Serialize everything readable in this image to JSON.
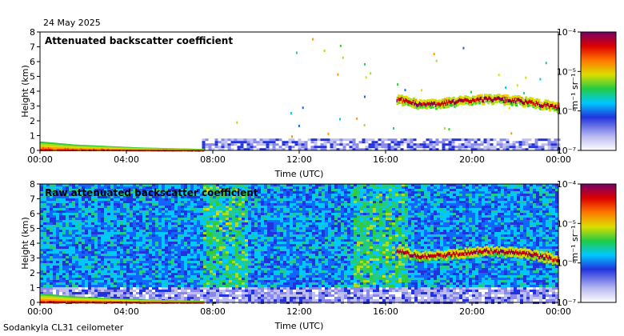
{
  "date_label": "24 May 2025",
  "footer_label": "Sodankyla CL31 ceilometer",
  "chart_data": [
    {
      "type": "heatmap",
      "title": "Attenuated backscatter coefficient",
      "xlabel": "Time (UTC)",
      "ylabel": "Height (km)",
      "x_ticks": [
        "00:00",
        "04:00",
        "08:00",
        "12:00",
        "16:00",
        "20:00",
        "00:00"
      ],
      "y_ticks": [
        "0",
        "1",
        "2",
        "3",
        "4",
        "5",
        "6",
        "7",
        "8"
      ],
      "xlim_hours": [
        0,
        24
      ],
      "ylim_km": [
        0,
        8
      ],
      "colorbar": {
        "unit": "m⁻¹ sr⁻¹",
        "scale": "log",
        "ticks": [
          "10⁻⁷",
          "10⁻⁶",
          "10⁻⁵",
          "10⁻⁴"
        ],
        "range": [
          1e-07,
          0.0001
        ]
      },
      "features": {
        "cloud_layer": {
          "start_hour": 16.5,
          "end_hour": 24,
          "height_km": [
            3.5,
            3.1,
            3.2,
            3.4,
            3.5,
            3.4,
            3.2,
            2.9
          ]
        },
        "boundary_layer": {
          "start_hour": 0,
          "end_hour": 7.5,
          "height_km": [
            0.6,
            0.4,
            0.3,
            0.2,
            0.15,
            0.1
          ]
        },
        "noise_top_km": 0.8
      }
    },
    {
      "type": "heatmap",
      "title": "Raw attenuated backscatter coefficient",
      "xlabel": "Time (UTC)",
      "ylabel": "Height (km)",
      "x_ticks": [
        "00:00",
        "04:00",
        "08:00",
        "12:00",
        "16:00",
        "20:00",
        "00:00"
      ],
      "y_ticks": [
        "0",
        "1",
        "2",
        "3",
        "4",
        "5",
        "6",
        "7",
        "8"
      ],
      "xlim_hours": [
        0,
        24
      ],
      "ylim_km": [
        0,
        8
      ],
      "colorbar": {
        "unit": "m⁻¹ sr⁻¹",
        "scale": "log",
        "ticks": [
          "10⁻⁷",
          "10⁻⁶",
          "10⁻⁵",
          "10⁻⁴"
        ],
        "range": [
          1e-07,
          0.0001
        ]
      },
      "features": {
        "cloud_layer": {
          "start_hour": 16.5,
          "end_hour": 24,
          "height_km": [
            3.5,
            3.1,
            3.2,
            3.4,
            3.5,
            3.4,
            3.2,
            2.9
          ]
        },
        "boundary_layer": {
          "start_hour": 0,
          "end_hour": 7.5,
          "height_km": [
            0.6,
            0.4,
            0.3,
            0.2,
            0.15,
            0.1
          ]
        },
        "green_noise_periods_hours": [
          [
            7.5,
            9.5
          ],
          [
            14.5,
            17
          ]
        ]
      }
    }
  ]
}
